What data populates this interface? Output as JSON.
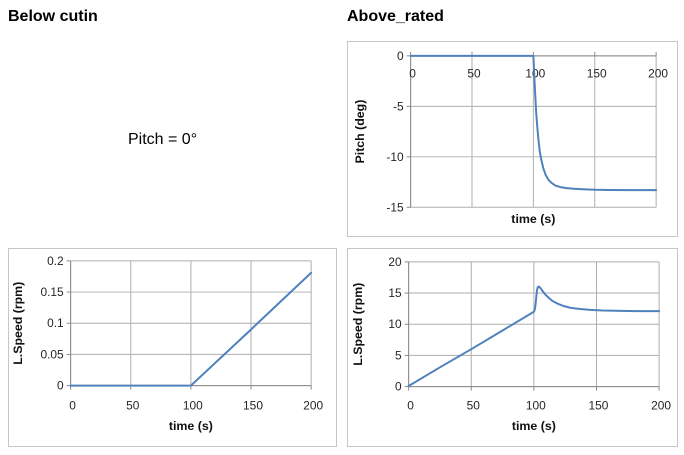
{
  "page": {
    "left_section_title": "Below cutin",
    "right_section_title": "Above_rated",
    "below_cutin_note": "Pitch = 0°"
  },
  "colors": {
    "series_blue": "#4f81bd",
    "gridline": "#aeaeae",
    "axis_line": "#8a8a8a",
    "panel_border": "#c6c6c6",
    "tick_text": "#262626",
    "title_text": "#111111"
  },
  "chart_data": [
    {
      "id": "pitch_above",
      "type": "line",
      "title": "",
      "xlabel": "time (s)",
      "ylabel": "Pitch (deg)",
      "xlim": [
        0,
        200
      ],
      "ylim": [
        -15,
        0
      ],
      "grid": true,
      "legend": false,
      "axis_cross_y": 0,
      "xticks": [
        {
          "value": 0,
          "label": "0"
        },
        {
          "value": 50,
          "label": "50"
        },
        {
          "value": 100,
          "label": "100"
        },
        {
          "value": 150,
          "label": "150"
        },
        {
          "value": 200,
          "label": "200"
        }
      ],
      "yticks": [
        {
          "value": 0,
          "label": "0"
        },
        {
          "value": -5,
          "label": "-5"
        },
        {
          "value": -10,
          "label": "-10"
        },
        {
          "value": -15,
          "label": "-15"
        }
      ],
      "series": [
        {
          "name": "Pitch",
          "color": "#4f81bd",
          "x": [
            0,
            100,
            100.3,
            100.8,
            101.5,
            102.3,
            103.2,
            104.2,
            105.3,
            106.5,
            108,
            110,
            112.5,
            115,
            118,
            122,
            127,
            133,
            140,
            150,
            162,
            180,
            200
          ],
          "y": [
            0,
            0,
            -0.8,
            -2.2,
            -3.9,
            -5.6,
            -7.1,
            -8.4,
            -9.5,
            -10.3,
            -11.1,
            -11.8,
            -12.3,
            -12.6,
            -12.85,
            -13.0,
            -13.1,
            -13.17,
            -13.22,
            -13.26,
            -13.28,
            -13.3,
            -13.3
          ]
        }
      ]
    },
    {
      "id": "speed_below",
      "type": "line",
      "title": "",
      "xlabel": "time (s)",
      "ylabel": "L.Speed (rpm)",
      "xlim": [
        0,
        200
      ],
      "ylim": [
        0,
        0.2
      ],
      "grid": true,
      "legend": false,
      "axis_cross_y": 0,
      "xticks": [
        {
          "value": 0,
          "label": "0"
        },
        {
          "value": 50,
          "label": "50"
        },
        {
          "value": 100,
          "label": "100"
        },
        {
          "value": 150,
          "label": "150"
        },
        {
          "value": 200,
          "label": "200"
        }
      ],
      "yticks": [
        {
          "value": 0.2,
          "label": "0.2"
        },
        {
          "value": 0.15,
          "label": "0.15"
        },
        {
          "value": 0.1,
          "label": "0.1"
        },
        {
          "value": 0.05,
          "label": "0.05"
        },
        {
          "value": 0,
          "label": "0"
        }
      ],
      "series": [
        {
          "name": "L.Speed",
          "color": "#4f81bd",
          "x": [
            0,
            50,
            100,
            150,
            200
          ],
          "y": [
            0,
            0,
            0,
            0.09,
            0.181
          ]
        }
      ]
    },
    {
      "id": "speed_above",
      "type": "line",
      "title": "",
      "xlabel": "time (s)",
      "ylabel": "L.Speed (rpm)",
      "xlim": [
        0,
        200
      ],
      "ylim": [
        0,
        20
      ],
      "grid": true,
      "legend": false,
      "axis_cross_y": 0,
      "xticks": [
        {
          "value": 0,
          "label": "0"
        },
        {
          "value": 50,
          "label": "50"
        },
        {
          "value": 100,
          "label": "100"
        },
        {
          "value": 150,
          "label": "150"
        },
        {
          "value": 200,
          "label": "200"
        }
      ],
      "yticks": [
        {
          "value": 20,
          "label": "20"
        },
        {
          "value": 15,
          "label": "15"
        },
        {
          "value": 10,
          "label": "10"
        },
        {
          "value": 5,
          "label": "5"
        },
        {
          "value": 0,
          "label": "0"
        }
      ],
      "series": [
        {
          "name": "L.Speed",
          "color": "#4f81bd",
          "x": [
            0,
            25,
            50,
            75,
            100,
            100.5,
            101,
            101.5,
            102,
            102.5,
            103,
            103.8,
            104.6,
            105.6,
            107,
            109,
            112,
            115,
            119,
            124,
            130,
            137,
            145,
            155,
            170,
            185,
            200
          ],
          "y": [
            0.1,
            3.1,
            6.0,
            9.0,
            12.0,
            12.2,
            12.7,
            13.5,
            14.5,
            15.4,
            15.9,
            16.05,
            15.95,
            15.7,
            15.3,
            14.8,
            14.2,
            13.7,
            13.3,
            12.9,
            12.6,
            12.45,
            12.3,
            12.2,
            12.15,
            12.1,
            12.1
          ]
        }
      ]
    }
  ]
}
